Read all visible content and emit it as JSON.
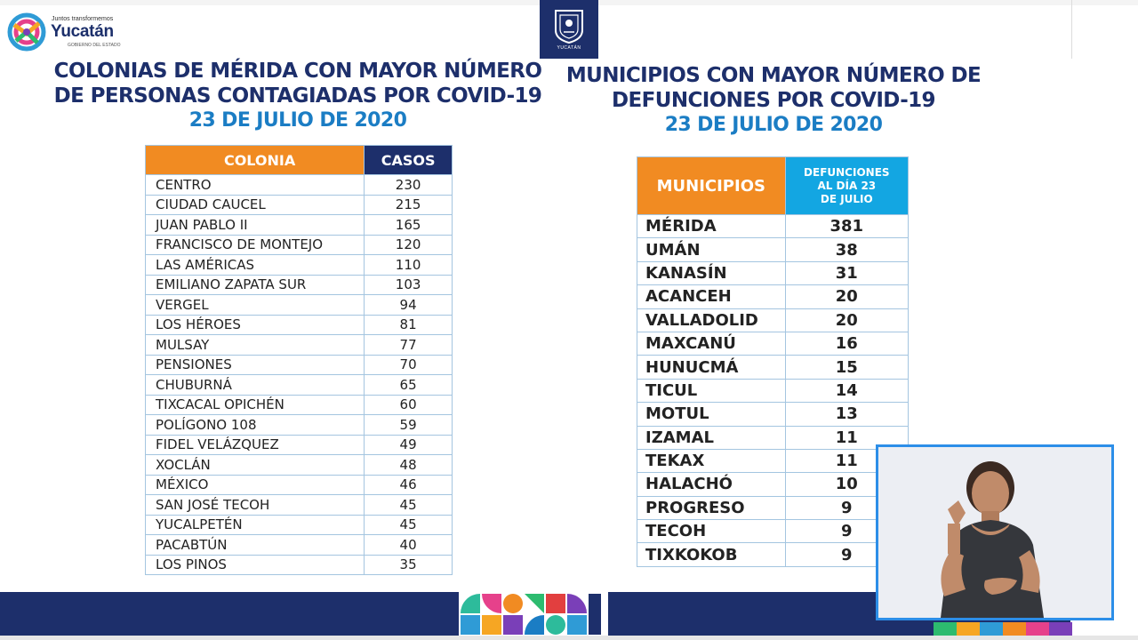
{
  "header": {
    "logo_small": "Juntos transformemos",
    "logo_name": "Yucatán",
    "logo_gov": "GOBIERNO DEL ESTADO",
    "shield_text": "YUCATÁN"
  },
  "left": {
    "title_line1": "COLONIAS DE MÉRIDA CON MAYOR NÚMERO",
    "title_line2": "DE PERSONAS CONTAGIADAS POR COVID-19",
    "date": "23 DE JULIO DE 2020",
    "col_colonia": "COLONIA",
    "col_casos": "CASOS",
    "rows": [
      {
        "name": "CENTRO",
        "value": "230"
      },
      {
        "name": "CIUDAD CAUCEL",
        "value": "215"
      },
      {
        "name": "JUAN PABLO II",
        "value": "165"
      },
      {
        "name": "FRANCISCO DE MONTEJO",
        "value": "120"
      },
      {
        "name": "LAS AMÉRICAS",
        "value": "110"
      },
      {
        "name": "EMILIANO ZAPATA SUR",
        "value": "103"
      },
      {
        "name": "VERGEL",
        "value": "94"
      },
      {
        "name": "LOS HÉROES",
        "value": "81"
      },
      {
        "name": "MULSAY",
        "value": "77"
      },
      {
        "name": "PENSIONES",
        "value": "70"
      },
      {
        "name": "CHUBURNÁ",
        "value": "65"
      },
      {
        "name": "TIXCACAL OPICHÉN",
        "value": "60"
      },
      {
        "name": "POLÍGONO 108",
        "value": "59"
      },
      {
        "name": "FIDEL VELÁZQUEZ",
        "value": "49"
      },
      {
        "name": "XOCLÁN",
        "value": "48"
      },
      {
        "name": "MÉXICO",
        "value": "46"
      },
      {
        "name": "SAN JOSÉ TECOH",
        "value": "45"
      },
      {
        "name": "YUCALPETÉN",
        "value": "45"
      },
      {
        "name": "PACABTÚN",
        "value": "40"
      },
      {
        "name": "LOS PINOS",
        "value": "35"
      }
    ]
  },
  "right": {
    "title_line1": "MUNICIPIOS CON MAYOR NÚMERO DE",
    "title_line2": "DEFUNCIONES POR COVID-19",
    "date": "23 DE JULIO DE 2020",
    "col_municipios": "MUNICIPIOS",
    "col_def_1": "DEFUNCIONES",
    "col_def_2": "AL DÍA 23",
    "col_def_3": "DE JULIO",
    "rows": [
      {
        "name": "MÉRIDA",
        "value": "381"
      },
      {
        "name": "UMÁN",
        "value": "38"
      },
      {
        "name": "KANASÍN",
        "value": "31"
      },
      {
        "name": "ACANCEH",
        "value": "20"
      },
      {
        "name": "VALLADOLID",
        "value": "20"
      },
      {
        "name": "MAXCANÚ",
        "value": "16"
      },
      {
        "name": "HUNUCMÁ",
        "value": "15"
      },
      {
        "name": "TICUL",
        "value": "14"
      },
      {
        "name": "MOTUL",
        "value": "13"
      },
      {
        "name": "IZAMAL",
        "value": "11"
      },
      {
        "name": "TEKAX",
        "value": "11"
      },
      {
        "name": "HALACHÓ",
        "value": "10"
      },
      {
        "name": "PROGRESO",
        "value": "9"
      },
      {
        "name": "TECOH",
        "value": "9"
      },
      {
        "name": "TIXKOKOB",
        "value": "9"
      }
    ]
  },
  "colors": {
    "navy": "#1d2f6b",
    "blue": "#1b7dc4",
    "orange": "#f18b22",
    "cyan": "#13a6e2"
  }
}
